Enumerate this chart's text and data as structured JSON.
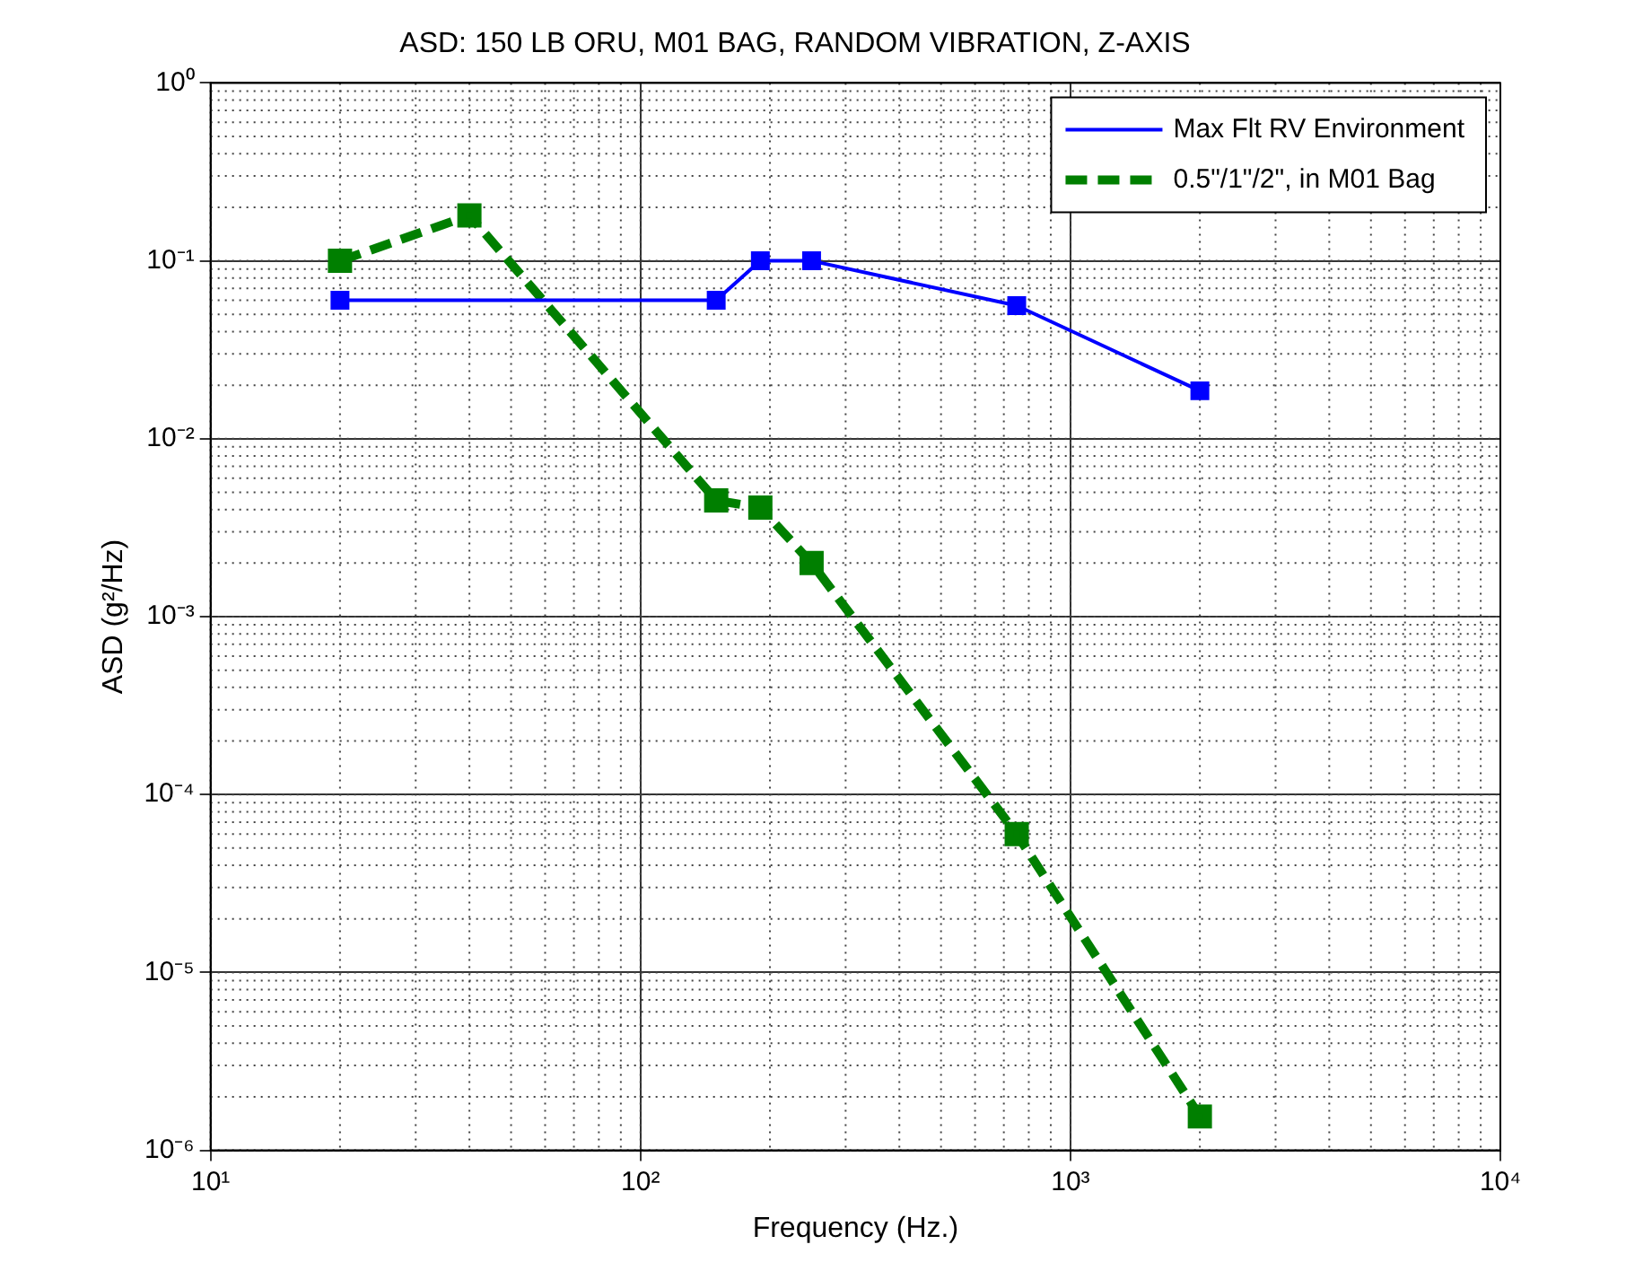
{
  "chart_data": {
    "type": "line",
    "title": "ASD: 150 LB ORU, M01 BAG, RANDOM VIBRATION, Z-AXIS",
    "xlabel": "Frequency (Hz.)",
    "ylabel": "ASD (g²/Hz)",
    "log": "xy",
    "xlim": [
      10,
      10000
    ],
    "xticks": [
      {
        "value": 10,
        "label": "10¹"
      },
      {
        "value": 100,
        "label": "10²"
      },
      {
        "value": 1000,
        "label": "10³"
      },
      {
        "value": 10000,
        "label": "10⁴"
      }
    ],
    "ylim": [
      1e-06,
      1
    ],
    "yticks": [
      {
        "value": 1e-06,
        "label": "10⁻⁶"
      },
      {
        "value": 1e-05,
        "label": "10⁻⁵"
      },
      {
        "value": 0.0001,
        "label": "10⁻⁴"
      },
      {
        "value": 0.001,
        "label": "10⁻³"
      },
      {
        "value": 0.01,
        "label": "10⁻²"
      },
      {
        "value": 0.1,
        "label": "10⁻¹"
      },
      {
        "value": 1,
        "label": "10⁰"
      }
    ],
    "grid": true,
    "legend": "top right",
    "marker": "square",
    "series": [
      {
        "name": "Max Flt RV Environment",
        "color": "#0000ff",
        "line_style": "solid",
        "x": [
          20,
          150,
          190,
          250,
          750,
          2000
        ],
        "values": [
          0.06,
          0.06,
          0.1,
          0.1,
          0.056,
          0.0186
        ]
      },
      {
        "name": "0.5\"/1\"/2\", in M01 Bag",
        "color": "#007f00",
        "line_style": "dashed",
        "x": [
          20,
          40,
          150,
          190,
          250,
          750,
          2000
        ],
        "values": [
          0.1,
          0.18,
          0.0045,
          0.0041,
          0.002,
          6e-05,
          1.55e-06
        ]
      }
    ]
  }
}
